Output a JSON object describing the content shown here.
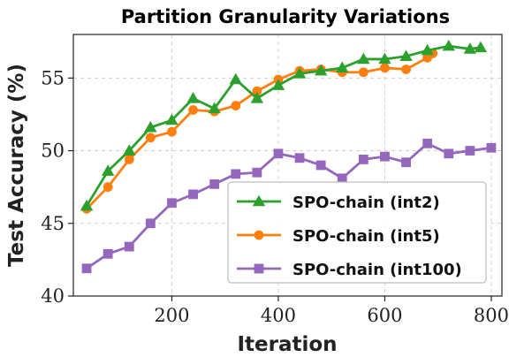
{
  "chart_data": {
    "type": "line",
    "title": "Partition Granularity Variations",
    "xlabel": "Iteration",
    "ylabel": "Test Accuracy (%)",
    "xlim": [
      15,
      820
    ],
    "ylim": [
      40,
      58
    ],
    "xticks": [
      200,
      400,
      600,
      800
    ],
    "yticks": [
      40,
      45,
      50,
      55
    ],
    "grid": true,
    "legend_position": "lower-right",
    "series": [
      {
        "name": "SPO-chain (int2)",
        "color": "#2ca02c",
        "marker": "triangle",
        "x": [
          40,
          80,
          120,
          160,
          200,
          240,
          280,
          320,
          360,
          400,
          440,
          480,
          520,
          560,
          600,
          640,
          680,
          720,
          760,
          780
        ],
        "y": [
          46.2,
          48.6,
          50.0,
          51.6,
          52.1,
          53.6,
          52.9,
          54.9,
          53.6,
          54.5,
          55.3,
          55.5,
          55.7,
          56.3,
          56.3,
          56.5,
          56.9,
          57.2,
          57.0,
          57.1
        ]
      },
      {
        "name": "SPO-chain (int5)",
        "color": "#ff7f0e",
        "marker": "circle",
        "x": [
          40,
          80,
          120,
          160,
          200,
          240,
          280,
          320,
          360,
          400,
          440,
          480,
          520,
          560,
          600,
          640,
          680,
          690
        ],
        "y": [
          46.0,
          47.5,
          49.4,
          50.9,
          51.3,
          52.8,
          52.7,
          53.1,
          54.1,
          54.9,
          55.5,
          55.6,
          55.4,
          55.4,
          55.7,
          55.6,
          56.4,
          56.7
        ]
      },
      {
        "name": "SPO-chain (int100)",
        "color": "#9467bd",
        "marker": "square",
        "x": [
          40,
          80,
          120,
          160,
          200,
          240,
          280,
          320,
          360,
          400,
          440,
          480,
          520,
          560,
          600,
          640,
          680,
          720,
          760,
          800
        ],
        "y": [
          41.9,
          42.9,
          43.4,
          45.0,
          46.4,
          47.0,
          47.7,
          48.4,
          48.5,
          49.8,
          49.5,
          49.0,
          48.1,
          49.4,
          49.6,
          49.2,
          50.5,
          49.8,
          50.0,
          50.2
        ]
      }
    ]
  }
}
